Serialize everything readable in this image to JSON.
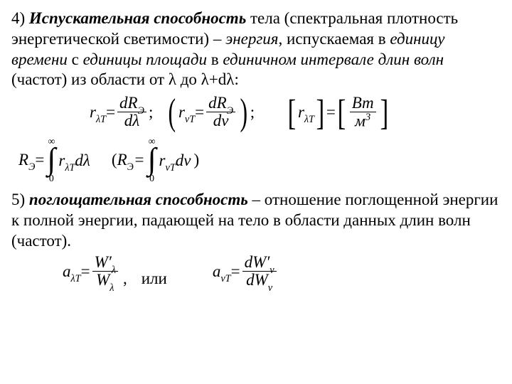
{
  "section4": {
    "num": "4) ",
    "title": "Испускательная способность",
    "t1": " тела (спектральная плотность энергетической светимости) – ",
    "w_energy": "энергия",
    "t2": ", испускаемая в ",
    "w_unit_time": "единицу времени",
    "t3": " с ",
    "w_unit_area": "единицы площади",
    "t4": " в ",
    "w_unit_interval": "единичном интервале длин волн",
    "t5": " (частот) из области от λ  до λ+dλ:"
  },
  "eq1": {
    "lhs": "r",
    "lhs_sub": "λT",
    "eq": " = ",
    "num": "dR",
    "num_sub": "Э",
    "den": "dλ",
    "sep1": ";",
    "paren_lhs": "r",
    "paren_sub": "νT",
    "paren_num": "dR",
    "paren_num_sub": "Э",
    "paren_den": "dν",
    "sep2": ";",
    "unit_lhs": "r",
    "unit_lhs_sub": "λT",
    "unit_num": "Вт",
    "unit_den": "м",
    "unit_den_sup": "3"
  },
  "eq2": {
    "Rlhs": "R",
    "Rsub": "Э",
    "eq": " = ",
    "int_upper": "∞",
    "int_lower": "0",
    "integrand1_r": "r",
    "integrand1_sub": "λT",
    "integrand1_d": "dλ",
    "integrand2_r": "r",
    "integrand2_sub": "νT",
    "integrand2_d": "dν"
  },
  "section5": {
    "num": "5) ",
    "title": "поглощательная способность",
    "t1": " – отношение поглощенной энергии к полной энергии, падающей на тело в области данных длин волн (частот)."
  },
  "eq3": {
    "a1": "a",
    "a1_sub": "λT",
    "eq": " = ",
    "num1": "W′",
    "num1_sub": "λ",
    "den1": "W",
    "den1_sub": "λ",
    "comma": ",",
    "word": "или",
    "a2": "a",
    "a2_sub": "νT",
    "num2": "dW′",
    "num2_sub": "ν",
    "den2": "dW",
    "den2_sub": "ν"
  },
  "layout": {
    "eq1_indent": 110,
    "eq1_gap1": 18,
    "eq1_gap2": 44,
    "eq2_indent": 10,
    "eq2_gap": 26,
    "eq3_indent": 72,
    "eq3_gap1": 20,
    "eq3_gap2": 64
  }
}
